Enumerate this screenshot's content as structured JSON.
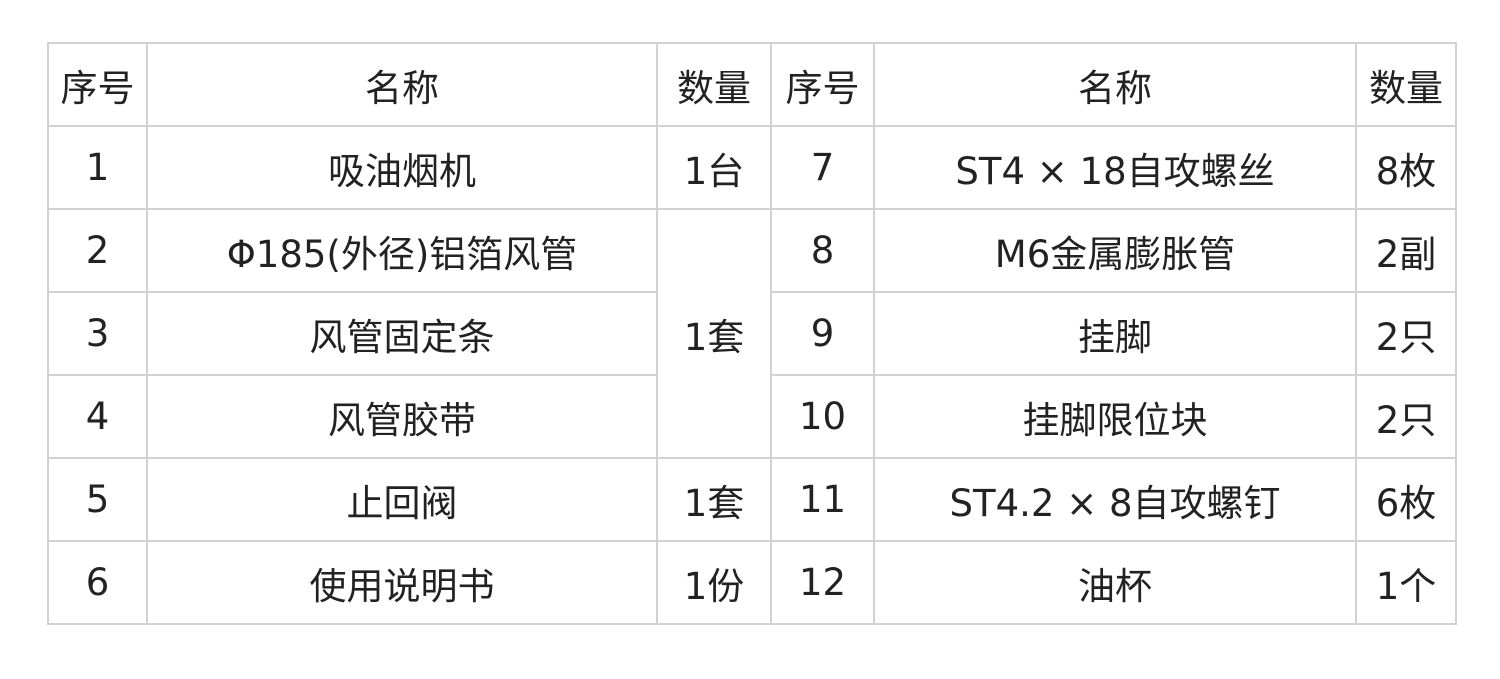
{
  "table": {
    "headers": [
      "序号",
      "名称",
      "数量",
      "序号",
      "名称",
      "数量"
    ],
    "left_rows": [
      {
        "no": "1",
        "name": "吸油烟机",
        "qty": "1台"
      },
      {
        "no": "2",
        "name": "Φ185(外径)铝箔风管",
        "qty": "1套"
      },
      {
        "no": "3",
        "name": "风管固定条",
        "qty": null
      },
      {
        "no": "4",
        "name": "风管胶带",
        "qty": null
      },
      {
        "no": "5",
        "name": "止回阀",
        "qty": "1套"
      },
      {
        "no": "6",
        "name": "使用说明书",
        "qty": "1份"
      }
    ],
    "right_rows": [
      {
        "no": "7",
        "name": "ST4 × 18自攻螺丝",
        "qty": "8枚"
      },
      {
        "no": "8",
        "name": "M6金属膨胀管",
        "qty": "2副"
      },
      {
        "no": "9",
        "name": "挂脚",
        "qty": "2只"
      },
      {
        "no": "10",
        "name": "挂脚限位块",
        "qty": "2只"
      },
      {
        "no": "11",
        "name": "ST4.2 × 8自攻螺钉",
        "qty": "6枚"
      },
      {
        "no": "12",
        "name": "油杯",
        "qty": "1个"
      }
    ]
  }
}
